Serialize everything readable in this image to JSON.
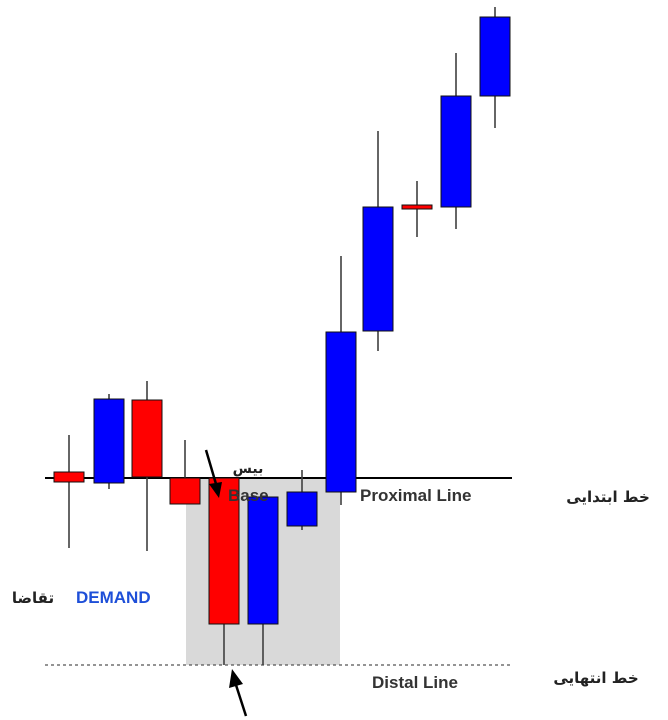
{
  "labels": {
    "base_en": "Base",
    "base_fa": "بیس",
    "proximal_en": "Proximal Line",
    "proximal_fa": "خط ابتدایی",
    "distal_en": "Distal Line",
    "distal_fa": "خط انتهایی",
    "demand_en": "DEMAND",
    "demand_fa": "تقاضا"
  },
  "colors": {
    "bull": "#0000ff",
    "bear": "#ff0000",
    "wick": "#404040",
    "zone": "#d9d9d9",
    "text": "#222222",
    "demand": "#1e4fd8"
  },
  "candles": [
    {
      "dir": "bear"
    },
    {
      "dir": "bull"
    },
    {
      "dir": "bear"
    },
    {
      "dir": "bear"
    },
    {
      "dir": "bear"
    },
    {
      "dir": "bull"
    },
    {
      "dir": "bull"
    },
    {
      "dir": "bull"
    },
    {
      "dir": "bull"
    },
    {
      "dir": "bear"
    },
    {
      "dir": "bull"
    },
    {
      "dir": "bull"
    }
  ]
}
